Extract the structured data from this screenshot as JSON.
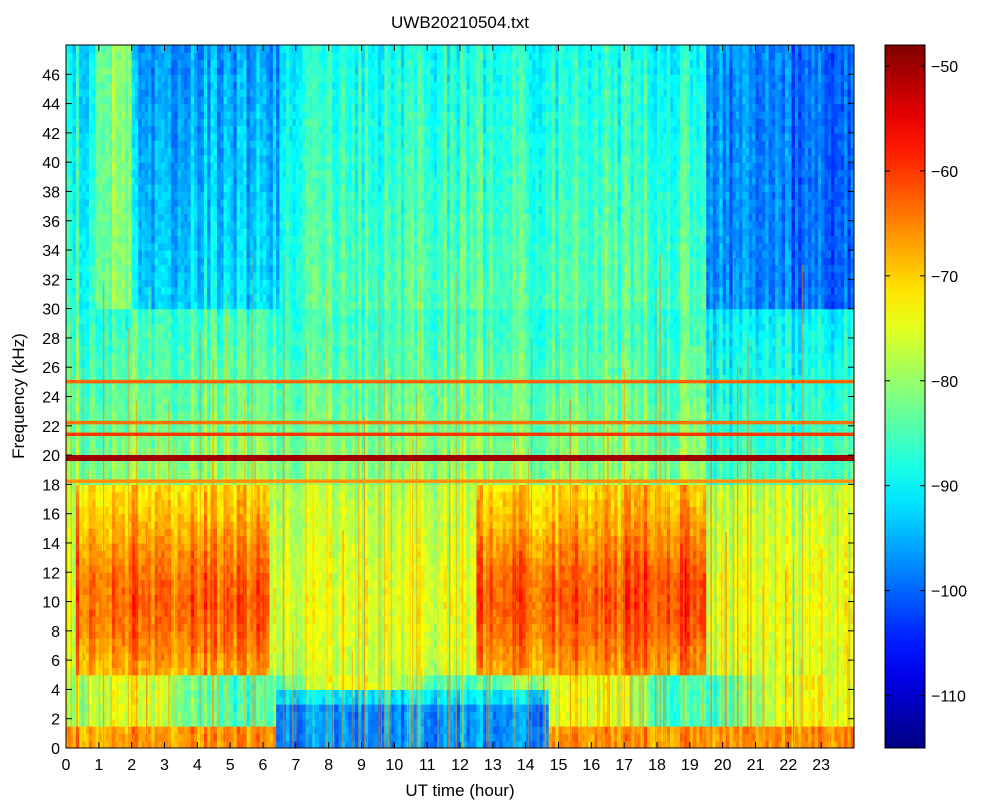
{
  "chart_data": {
    "type": "heatmap",
    "title": "UWB20210504.txt",
    "xlabel": "UT time (hour)",
    "ylabel": "Frequency (kHz)",
    "xlim": [
      0,
      24
    ],
    "ylim": [
      0,
      48
    ],
    "x_ticks": [
      0,
      1,
      2,
      3,
      4,
      5,
      6,
      7,
      8,
      9,
      10,
      11,
      12,
      13,
      14,
      15,
      16,
      17,
      18,
      19,
      20,
      21,
      22,
      23
    ],
    "y_ticks": [
      0,
      2,
      4,
      6,
      8,
      10,
      12,
      14,
      16,
      18,
      20,
      22,
      24,
      26,
      28,
      30,
      32,
      34,
      36,
      38,
      40,
      42,
      44,
      46
    ],
    "colorbar": {
      "range": [
        -115,
        -48
      ],
      "ticks": [
        -50,
        -60,
        -70,
        -80,
        -90,
        -100,
        -110
      ],
      "colormap": "jet"
    },
    "features": {
      "persistent_lines_khz": [
        19.8,
        21.4,
        22.2,
        25.0,
        18.2
      ],
      "strongest_line_khz": 19.8,
      "high_activity_bands": [
        {
          "from_hour": 0.3,
          "to_hour": 6.2,
          "from_khz": 5,
          "to_khz": 17,
          "level_db": -62
        },
        {
          "from_hour": 12.5,
          "to_hour": 19.5,
          "from_khz": 5,
          "to_khz": 17,
          "level_db": -60
        }
      ],
      "quiet_regions": [
        {
          "from_hour": 6.4,
          "to_hour": 14.7,
          "from_khz": 0,
          "to_khz": 4,
          "level_db": -98
        },
        {
          "from_hour": 19.5,
          "to_hour": 24,
          "from_khz": 30,
          "to_khz": 48,
          "level_db": -102
        }
      ]
    }
  }
}
